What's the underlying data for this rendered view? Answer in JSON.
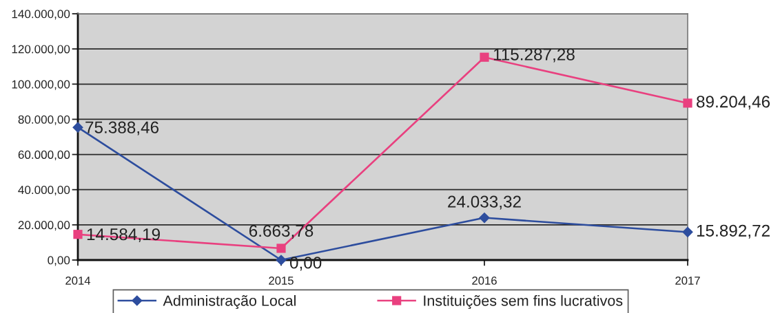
{
  "chart_data": {
    "type": "line",
    "categories": [
      "2014",
      "2015",
      "2016",
      "2017"
    ],
    "series": [
      {
        "name": "Administração Local",
        "color": "#2d4d9e",
        "marker": "diamond",
        "values": [
          75388.46,
          0,
          24033.32,
          15892.72
        ],
        "value_labels": [
          "75.388,46",
          "0,00",
          "24.033,32",
          "15.892,72"
        ]
      },
      {
        "name": "Instituições sem fins lucrativos",
        "color": "#e9407f",
        "marker": "square",
        "values": [
          14584.19,
          6663.78,
          115287.28,
          89204.46
        ],
        "value_labels": [
          "14.584,19",
          "6.663,78",
          "115.287,28",
          "89.204,46"
        ]
      }
    ],
    "ylim": [
      0,
      140000
    ],
    "yticks": [
      {
        "value": 0,
        "label": "0,00"
      },
      {
        "value": 20000,
        "label": "20.000,00"
      },
      {
        "value": 40000,
        "label": "40.000,00"
      },
      {
        "value": 60000,
        "label": "60.000,00"
      },
      {
        "value": 80000,
        "label": "80.000,00"
      },
      {
        "value": 100000,
        "label": "100.000,00"
      },
      {
        "value": 120000,
        "label": "120.000,00"
      },
      {
        "value": 140000,
        "label": "140.000,00"
      }
    ],
    "grid": "y",
    "legend": "bottom",
    "line_style": "solid"
  }
}
